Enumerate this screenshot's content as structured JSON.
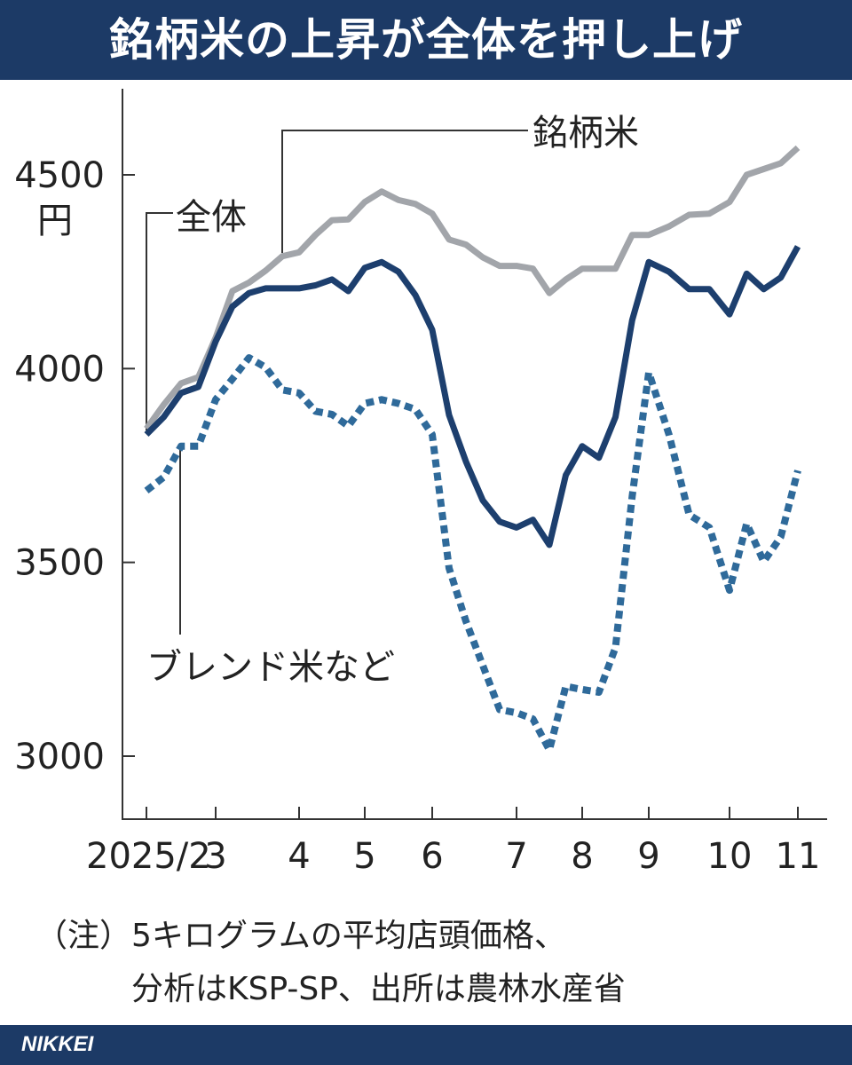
{
  "title": "銘柄米の上昇が全体を押し上げ",
  "footer": {
    "brand": "NIKKEI"
  },
  "notes": [
    "（注）5キログラムの平均店頭価格、",
    "　　　分析はKSP-SP、出所は農林水産省"
  ],
  "colors": {
    "header": "#1c3a66",
    "overall": "#1d3f6e",
    "brand": "#a2a5aa",
    "blend": "#2f6a9a"
  },
  "chart_data": {
    "type": "line",
    "title": "銘柄米の上昇が全体を押し上げ",
    "ylabel": "円",
    "xlabel": "",
    "ylim": [
      2850,
      4700
    ],
    "yticks": [
      3000,
      3500,
      4000,
      4500
    ],
    "ytick_labels": [
      "3000",
      "3500",
      "4000",
      "4500"
    ],
    "x_unit": "week index from 2025/2",
    "xlim": [
      -1,
      40
    ],
    "xticks": [
      0,
      4,
      9,
      13,
      17,
      22,
      26,
      30,
      34,
      38
    ],
    "xtick_labels": [
      "2025/2",
      "3",
      "4",
      "5",
      "6",
      "7",
      "8",
      "9",
      "10",
      "11"
    ],
    "grid": false,
    "series": [
      {
        "name": "銘柄米",
        "style": "solid",
        "values": [
          3845,
          3907,
          3962,
          3978,
          4080,
          4200,
          4222,
          4253,
          4290,
          4300,
          4345,
          4383,
          4385,
          4430,
          4457,
          4435,
          4425,
          4400,
          4333,
          4320,
          4287,
          4265,
          4265,
          4258,
          4195,
          4230,
          4258,
          4258,
          4258,
          4345,
          4345,
          4367,
          4397,
          4400,
          4430,
          4500,
          4515,
          4530,
          4570
        ]
      },
      {
        "name": "全体",
        "style": "solid",
        "values": [
          3830,
          3875,
          3937,
          3953,
          4070,
          4160,
          4195,
          4207,
          4207,
          4207,
          4215,
          4230,
          4200,
          4260,
          4275,
          4250,
          4190,
          4100,
          3880,
          3760,
          3660,
          3605,
          3590,
          3610,
          3545,
          3725,
          3800,
          3770,
          3875,
          4125,
          4275,
          4250,
          4205,
          4205,
          4140,
          4245,
          4205,
          4235,
          4315
        ]
      },
      {
        "name": "ブレンド米など",
        "style": "dashed",
        "values": [
          3685,
          3720,
          3800,
          3800,
          3920,
          3973,
          4028,
          4003,
          3945,
          3937,
          3890,
          3882,
          3852,
          3910,
          3920,
          3910,
          3895,
          3830,
          3485,
          3348,
          3234,
          3120,
          3112,
          3096,
          3016,
          3180,
          3172,
          3165,
          3280,
          3670,
          3990,
          3830,
          3623,
          3590,
          3428,
          3600,
          3502,
          3566,
          3737
        ]
      }
    ]
  }
}
